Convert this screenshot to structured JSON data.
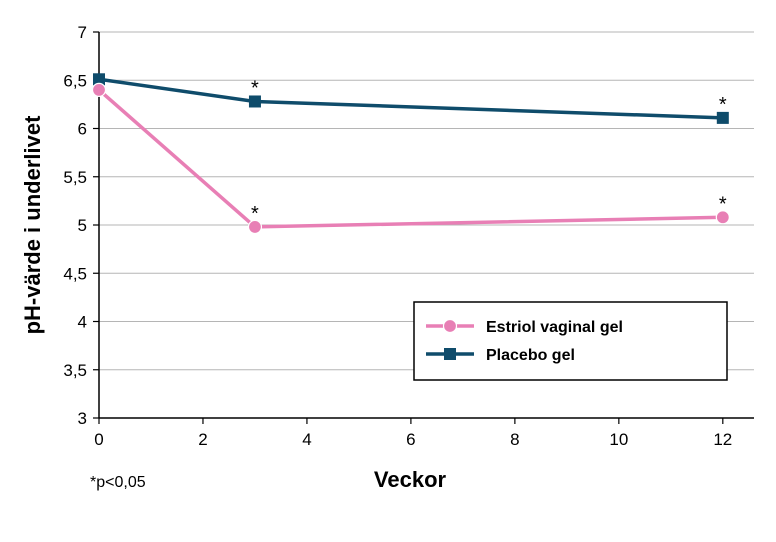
{
  "chart_data": {
    "type": "line",
    "title": "",
    "xlabel": "Veckor",
    "ylabel": "pH-värde i underlivet",
    "xlim": [
      0,
      12.6
    ],
    "ylim": [
      3,
      7
    ],
    "xticks": [
      0,
      2,
      4,
      6,
      8,
      10,
      12
    ],
    "yticks": [
      3,
      3.5,
      4,
      4.5,
      5,
      5.5,
      6,
      6.5,
      7
    ],
    "ytick_labels": [
      "3",
      "3,5",
      "4",
      "4,5",
      "5",
      "5,5",
      "6",
      "6,5",
      "7"
    ],
    "grid": "horizontal",
    "legend_position": "right",
    "series": [
      {
        "name": "Estriol vaginal gel",
        "color": "#e87fb5",
        "marker": "circle",
        "x": [
          0,
          3,
          12
        ],
        "values": [
          6.4,
          4.98,
          5.08
        ],
        "annotations": [
          "",
          "*",
          "*"
        ]
      },
      {
        "name": "Placebo gel",
        "color": "#0f4c6b",
        "marker": "square",
        "x": [
          0,
          3,
          12
        ],
        "values": [
          6.51,
          6.28,
          6.11
        ],
        "annotations": [
          "",
          "*",
          "*"
        ]
      }
    ],
    "footnote": "*p<0,05"
  }
}
